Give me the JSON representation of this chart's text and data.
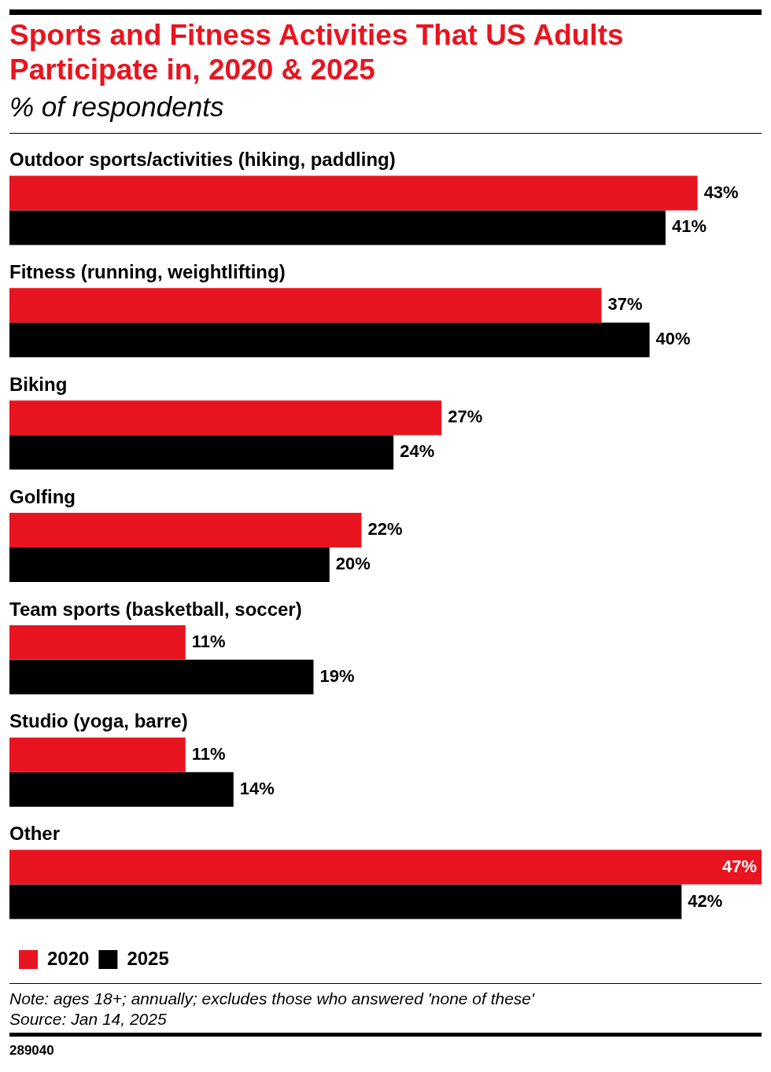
{
  "chart_data": {
    "type": "bar",
    "orientation": "horizontal",
    "title": "Sports and Fitness Activities That US Adults Participate in, 2020 & 2025",
    "subtitle": "% of respondents",
    "categories": [
      "Outdoor sports/activities (hiking, paddling)",
      "Fitness (running, weightlifting)",
      "Biking",
      "Golfing",
      "Team sports (basketball, soccer)",
      "Studio (yoga, barre)",
      "Other"
    ],
    "series": [
      {
        "name": "2020",
        "color": "#e8141f",
        "values": [
          43,
          37,
          27,
          22,
          11,
          11,
          47
        ],
        "value_labels": [
          "43%",
          "37%",
          "27%",
          "22%",
          "11%",
          "11%",
          "47%"
        ]
      },
      {
        "name": "2025",
        "color": "#000000",
        "values": [
          41,
          40,
          24,
          20,
          19,
          14,
          42
        ],
        "value_labels": [
          "41%",
          "40%",
          "24%",
          "20%",
          "19%",
          "14%",
          "42%"
        ]
      }
    ],
    "legend": "bottom left",
    "annotations": [
      "Note: ages 18+; annually; excludes those who answered 'none of these'",
      "Source: Jan 14, 2025",
      "289040"
    ]
  }
}
